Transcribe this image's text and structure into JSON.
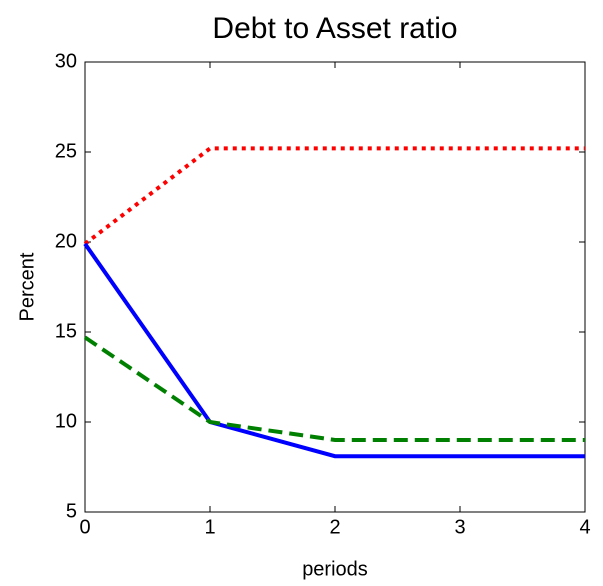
{
  "chart_data": {
    "type": "line",
    "title": "Debt to Asset ratio",
    "xlabel": "periods",
    "ylabel": "Percent",
    "x": [
      0,
      1,
      2,
      3,
      4
    ],
    "series": [
      {
        "color": "#ff0000",
        "linestyle": "dotted",
        "values": [
          19.9,
          25.2,
          25.2,
          25.2,
          25.2
        ]
      },
      {
        "color": "#0000ff",
        "linestyle": "solid",
        "values": [
          19.9,
          10,
          8.1,
          8.1,
          8.1
        ]
      },
      {
        "color": "#008000",
        "linestyle": "dashed",
        "values": [
          14.7,
          10,
          9,
          9,
          9
        ]
      }
    ],
    "xlim": [
      0,
      4
    ],
    "xticks": [
      0,
      1,
      2,
      3,
      4
    ],
    "ylim": [
      5,
      30
    ],
    "yticks": [
      5,
      10,
      15,
      20,
      25,
      30
    ],
    "grid": false
  }
}
